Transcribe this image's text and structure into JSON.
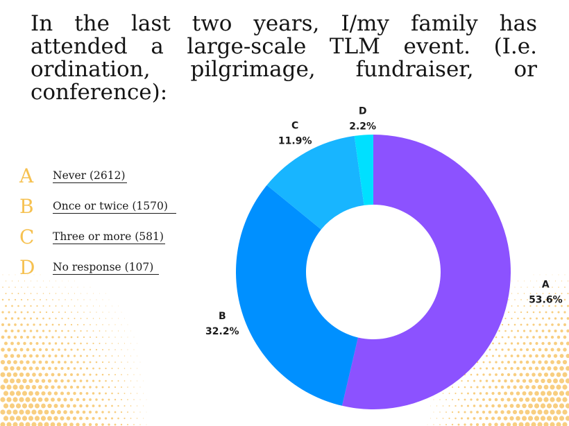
{
  "chart_data": {
    "type": "pie",
    "title": "In the last two years, I/my family has attended a large-scale TLM event. (I.e. ordination, pilgrimage, fundraiser, or conference):",
    "legend_position": "left",
    "slices": [
      {
        "letter": "A",
        "pct_label": "53.6%",
        "value": 53.6,
        "legend": "Never (2612)",
        "color": "#8c52ff"
      },
      {
        "letter": "B",
        "pct_label": "32.2%",
        "value": 32.2,
        "legend": "Once or twice (1570)",
        "color": "#0090ff"
      },
      {
        "letter": "C",
        "pct_label": "11.9%",
        "value": 11.9,
        "legend": "Three or more (581)",
        "color": "#18b5ff"
      },
      {
        "letter": "D",
        "pct_label": "2.2%",
        "value": 2.2,
        "legend": "No response (107)",
        "color": "#00e0ff"
      }
    ]
  },
  "colors": {
    "legend_letter": "#f6c150",
    "dots": "#f7c66a"
  }
}
